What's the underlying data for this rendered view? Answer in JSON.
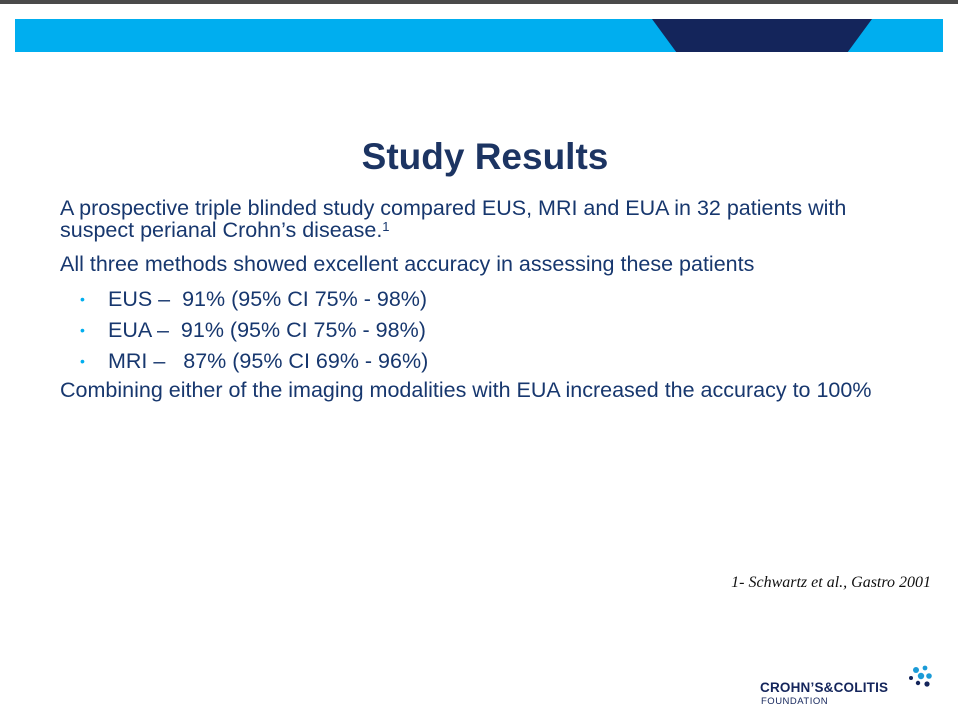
{
  "slide": {
    "title": "Study Results",
    "paragraph1": "A prospective triple blinded study compared EUS, MRI and EUA in 32 patients with suspect perianal Crohn’s disease.",
    "paragraph1_sup": "1",
    "paragraph2": "All three methods showed excellent accuracy in assessing these patients",
    "bullets": [
      "EUS –  91% (95% CI 75% - 98%)",
      "EUA –  91% (95% CI 75% - 98%)",
      "MRI –   87% (95% CI 69% - 96%)"
    ],
    "paragraph3": "Combining either of the imaging modalities with EUA increased the accuracy to 100%",
    "citation": "1- Schwartz et al., Gastro 2001"
  },
  "logo": {
    "name": "CROHN’S&COLITIS",
    "subtitle": "FOUNDATION",
    "icon": "star-cluster-icon"
  },
  "colors": {
    "banner": "#00aeef",
    "banner_accent": "#14255b",
    "title": "#1c3462",
    "body_text": "#17376e",
    "bullet": "#00aeef"
  }
}
